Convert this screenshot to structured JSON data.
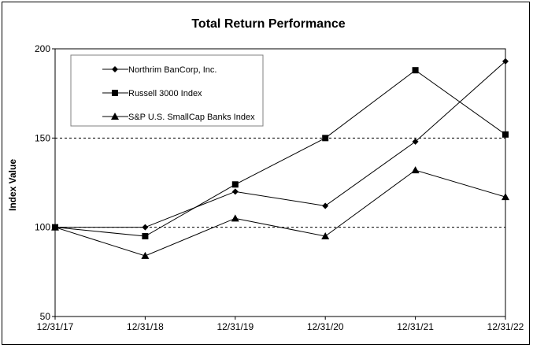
{
  "chart_data": {
    "type": "line",
    "title": "Total Return Performance",
    "xlabel": "",
    "ylabel": "Index Value",
    "categories": [
      "12/31/17",
      "12/31/18",
      "12/31/19",
      "12/31/20",
      "12/31/21",
      "12/31/22"
    ],
    "ylim": [
      50,
      200
    ],
    "yticks": [
      50,
      100,
      150,
      200
    ],
    "gridlines": [
      100,
      150
    ],
    "legend_position": "top-left",
    "series": [
      {
        "name": "Northrim BanCorp, Inc.",
        "marker": "diamond",
        "values": [
          100,
          100,
          120,
          112,
          148,
          193
        ]
      },
      {
        "name": "Russell 3000 Index",
        "marker": "square",
        "values": [
          100,
          95,
          124,
          150,
          188,
          152
        ]
      },
      {
        "name": "S&P U.S. SmallCap Banks Index",
        "marker": "triangle",
        "values": [
          100,
          84,
          105,
          95,
          132,
          117
        ]
      }
    ]
  }
}
